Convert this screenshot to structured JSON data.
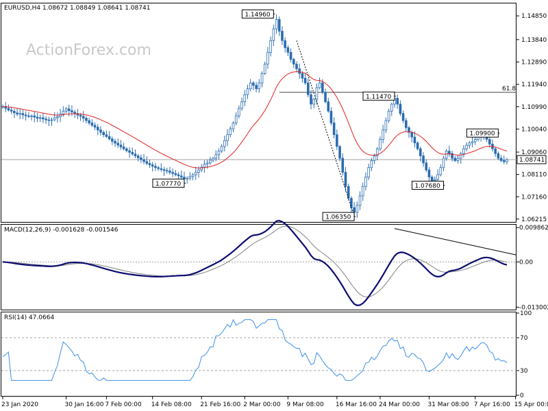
{
  "chart_data": {
    "type": "candlestick",
    "header": "EURUSD,H4  1.08672 1.08849 1.08641 1.08741",
    "watermark": "ActionForex.com",
    "colors": {
      "price": "#2b6cb0",
      "ma": "#e02020",
      "macd": "#0a0a6e",
      "signal": "#808080",
      "rsi": "#3a8ee6",
      "trend": "#000000"
    },
    "price_panel": {
      "ylim": [
        1.0615,
        1.1535
      ],
      "yticks": [
        {
          "label": "1.14850",
          "value": 1.1485
        },
        {
          "label": "1.13840",
          "value": 1.1384
        },
        {
          "label": "1.12890",
          "value": 1.1289
        },
        {
          "label": "1.11940",
          "value": 1.1194
        },
        {
          "label": "1.10990",
          "value": 1.1099
        },
        {
          "label": "1.10040",
          "value": 1.1004
        },
        {
          "label": "1.09060",
          "value": 1.0906
        },
        {
          "label": "1.08110",
          "value": 1.0811
        },
        {
          "label": "1.07160",
          "value": 1.0716
        },
        {
          "label": "1.06215",
          "value": 1.06215
        }
      ],
      "current_price": {
        "label": "1.08741",
        "value": 1.08741
      },
      "fib_level": {
        "label": "61.8",
        "value": 1.116,
        "from_bar": 96
      },
      "annotations": [
        {
          "label": "1.14960",
          "value": 1.1496,
          "bar": 94
        },
        {
          "label": "1.11470",
          "value": 1.1147,
          "bar": 136
        },
        {
          "label": "1.09900",
          "value": 1.099,
          "bar": 172
        },
        {
          "label": "1.07770",
          "value": 1.0777,
          "bar": 63
        },
        {
          "label": "1.06350",
          "value": 1.0635,
          "bar": 122
        },
        {
          "label": "1.07680",
          "value": 1.0768,
          "bar": 153
        }
      ],
      "close": [
        1.11,
        1.1092,
        1.1085,
        1.108,
        1.1073,
        1.1068,
        1.107,
        1.1064,
        1.106,
        1.1058,
        1.106,
        1.1055,
        1.105,
        1.1052,
        1.1047,
        1.1043,
        1.104,
        1.1043,
        1.1052,
        1.1056,
        1.1068,
        1.108,
        1.109,
        1.1082,
        1.1076,
        1.107,
        1.1063,
        1.1058,
        1.105,
        1.104,
        1.103,
        1.102,
        1.1012,
        1.1,
        1.099,
        1.098,
        1.0972,
        1.0962,
        1.0952,
        1.0944,
        1.0936,
        1.0928,
        1.092,
        1.0912,
        1.0905,
        1.0898,
        1.089,
        1.0882,
        1.0874,
        1.0866,
        1.0858,
        1.0852,
        1.0846,
        1.084,
        1.0836,
        1.0832,
        1.0828,
        1.0826,
        1.082,
        1.0815,
        1.081,
        1.0805,
        1.08,
        1.0792,
        1.0795,
        1.0802,
        1.081,
        1.082,
        1.083,
        1.0842,
        1.0855,
        1.086,
        1.0872,
        1.088,
        1.0895,
        1.091,
        1.093,
        1.0955,
        1.098,
        1.1005,
        1.103,
        1.106,
        1.1092,
        1.112,
        1.115,
        1.1175,
        1.12,
        1.119,
        1.1175,
        1.12,
        1.124,
        1.128,
        1.133,
        1.138,
        1.143,
        1.147,
        1.142,
        1.138,
        1.135,
        1.133,
        1.13,
        1.128,
        1.126,
        1.124,
        1.122,
        1.12,
        1.115,
        1.111,
        1.113,
        1.118,
        1.12,
        1.116,
        1.112,
        1.108,
        1.103,
        1.098,
        1.093,
        1.088,
        1.082,
        1.076,
        1.071,
        1.067,
        1.065,
        1.068,
        1.072,
        1.076,
        1.08,
        1.084,
        1.087,
        1.089,
        1.092,
        1.096,
        1.1,
        1.104,
        1.108,
        1.111,
        1.1135,
        1.111,
        1.107,
        1.104,
        1.101,
        1.099,
        1.097,
        1.0945,
        1.092,
        1.089,
        1.086,
        1.083,
        1.08,
        1.0785,
        1.079,
        1.081,
        1.084,
        1.088,
        1.091,
        1.09,
        1.088,
        1.087,
        1.088,
        1.09,
        1.092,
        1.0935,
        1.0945,
        1.095,
        1.096,
        1.097,
        1.098,
        1.0975,
        1.096,
        1.094,
        1.092,
        1.09,
        1.088,
        1.087,
        1.0865,
        1.0874
      ]
    },
    "macd_panel": {
      "title": "MACD(12,26,9) -0.001628 -0.001546",
      "ylim": [
        -0.0135,
        0.0105
      ],
      "yticks": [
        {
          "label": "0.009862",
          "value": 0.009862
        },
        {
          "label": "0.00",
          "value": 0.0
        },
        {
          "label": "-0.013002",
          "value": -0.013002
        }
      ],
      "trendline": {
        "from_bar": 136,
        "from_value": 0.0096,
        "to_bar": 183,
        "to_value": 0.002
      }
    },
    "rsi_panel": {
      "title": "RSI(14) 47.0664",
      "ylim": [
        0,
        100
      ],
      "yticks": [
        {
          "label": "100",
          "value": 100
        },
        {
          "label": "70",
          "value": 70
        },
        {
          "label": "30",
          "value": 30
        },
        {
          "label": "0",
          "value": 0
        }
      ],
      "levels": [
        70,
        30
      ]
    },
    "x_ticks": [
      {
        "label": "23 Jan 2020",
        "bar": 0
      },
      {
        "label": "30 Jan 16:00",
        "bar": 22
      },
      {
        "label": "7 Feb 00:00",
        "bar": 36
      },
      {
        "label": "14 Feb 08:00",
        "bar": 52
      },
      {
        "label": "21 Feb 16:00",
        "bar": 69
      },
      {
        "label": "2 Mar 00:00",
        "bar": 84
      },
      {
        "label": "9 Mar 08:00",
        "bar": 99
      },
      {
        "label": "16 Mar 16:00",
        "bar": 116
      },
      {
        "label": "24 Mar 00:00",
        "bar": 131
      },
      {
        "label": "31 Mar 08:00",
        "bar": 148
      },
      {
        "label": "7 Apr 16:00",
        "bar": 164
      },
      {
        "label": "15 Apr 00:00",
        "bar": 178
      }
    ]
  }
}
